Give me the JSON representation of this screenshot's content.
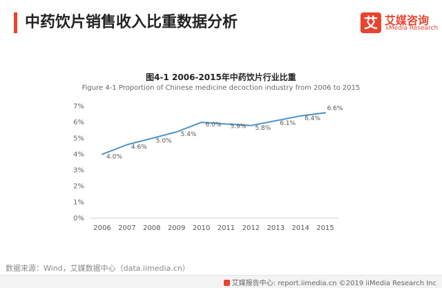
{
  "header": {
    "title": "中药饮片销售收入比重数据分析"
  },
  "logo": {
    "mark": "艾",
    "cn": "艾媒咨询",
    "en": "iiMedia Research",
    "color": "#e8432f"
  },
  "chart_data": {
    "type": "line",
    "title": "图4-1 2006-2015年中药饮片行业比重",
    "subtitle": "Figure 4-1 Proportion of Chinese medicine decoction industry from 2006 to 2015",
    "x": [
      "2006",
      "2007",
      "2008",
      "2009",
      "2010",
      "2011",
      "2012",
      "2013",
      "2014",
      "2015"
    ],
    "series": [
      {
        "values": [
          4.0,
          4.6,
          5.0,
          5.4,
          6.0,
          5.9,
          5.8,
          6.1,
          6.4,
          6.6
        ],
        "labels": [
          "4.0%",
          "4.6%",
          "5.0%",
          "5.4%",
          "6.0%",
          "5.9%",
          "5.8%",
          "6.1%",
          "6.4%",
          "6.6%"
        ],
        "color": "#4a90c8"
      }
    ],
    "yticks": [
      "0%",
      "1%",
      "2%",
      "3%",
      "4%",
      "5%",
      "6%",
      "7%"
    ],
    "ylim": [
      0,
      7
    ],
    "grid": false
  },
  "source": "数据来源：Wind，艾媒数据中心（data.iimedia.cn）",
  "footer": "艾媒报告中心: report.iimedia.cn ©2019 iiMedia Research Inc"
}
